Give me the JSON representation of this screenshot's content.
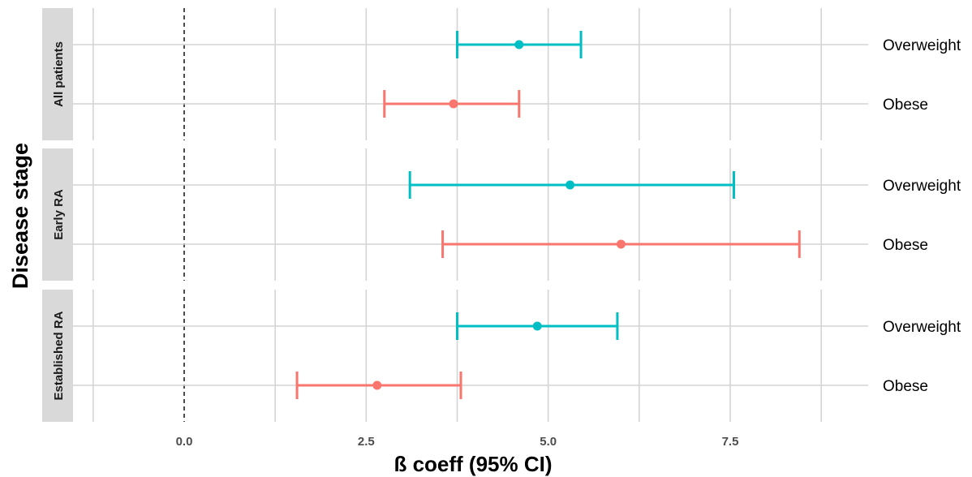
{
  "chart_data": {
    "type": "scatter",
    "subtype": "forest-plot-with-error-bars",
    "ylabel": "Disease stage",
    "xlabel": "ß coeff (95% CI)",
    "x_ticks": [
      "0.0",
      "2.5",
      "5.0",
      "7.5"
    ],
    "xlim": [
      -1.25,
      9.0
    ],
    "reference_line_x": 0,
    "grid": true,
    "colors": {
      "Overweight": "#00BFC4",
      "Obese": "#F8766D"
    },
    "panels": [
      {
        "label": "All patients",
        "rows": [
          {
            "label": "Overweight",
            "estimate": 4.6,
            "lower": 3.75,
            "upper": 5.45
          },
          {
            "label": "Obese",
            "estimate": 3.7,
            "lower": 2.75,
            "upper": 4.6
          }
        ]
      },
      {
        "label": "Early RA",
        "rows": [
          {
            "label": "Overweight",
            "estimate": 5.3,
            "lower": 3.1,
            "upper": 7.55
          },
          {
            "label": "Obese",
            "estimate": 6.0,
            "lower": 3.55,
            "upper": 8.45
          }
        ]
      },
      {
        "label": "Established RA",
        "rows": [
          {
            "label": "Overweight",
            "estimate": 4.85,
            "lower": 3.75,
            "upper": 5.95
          },
          {
            "label": "Obese",
            "estimate": 2.65,
            "lower": 1.55,
            "upper": 3.8
          }
        ]
      }
    ]
  }
}
